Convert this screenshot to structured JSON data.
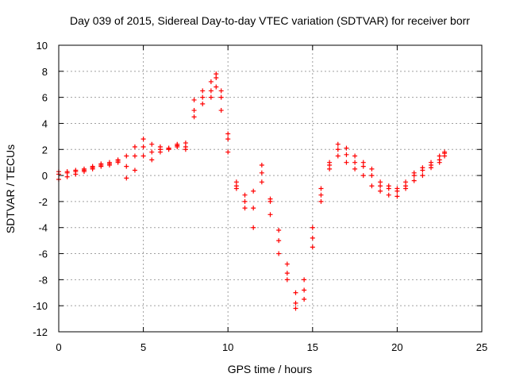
{
  "chart_data": {
    "type": "scatter",
    "title": "Day 039 of 2015, Sidereal Day-to-day VTEC variation (SDTVAR) for receiver borr",
    "xlabel": "GPS time / hours",
    "ylabel": "SDTVAR / TECUs",
    "xlim": [
      0,
      25
    ],
    "ylim": [
      -12,
      10
    ],
    "xticks": [
      0,
      5,
      10,
      15,
      20,
      25
    ],
    "yticks": [
      -12,
      -10,
      -8,
      -6,
      -4,
      -2,
      0,
      2,
      4,
      6,
      8,
      10
    ],
    "grid": true,
    "legend": "none",
    "marker": "plus",
    "color": "#ff0000",
    "series": [
      {
        "x": [
          0.0,
          0.5,
          1.0,
          1.5,
          2.0,
          2.5,
          3.0,
          3.5,
          4.0,
          4.5,
          5.0,
          5.5,
          6.0,
          6.5,
          7.0,
          7.5,
          8.0,
          8.5,
          9.0,
          9.3,
          9.6,
          10.0,
          10.5,
          11.0,
          11.5,
          12.0,
          12.5,
          13.0,
          13.5,
          14.0,
          14.5,
          15.0,
          15.5,
          16.0,
          16.5,
          17.0,
          17.5,
          18.0,
          18.5,
          19.0,
          19.5,
          20.0,
          20.5,
          21.0,
          21.5,
          22.0,
          22.5,
          22.8
        ],
        "y": [
          0.3,
          0.3,
          0.4,
          0.5,
          0.7,
          0.9,
          1.0,
          1.2,
          1.5,
          2.2,
          2.8,
          2.4,
          2.2,
          2.1,
          2.4,
          2.5,
          5.8,
          6.5,
          7.2,
          7.8,
          6.5,
          2.8,
          -0.5,
          -1.5,
          -1.2,
          0.8,
          -2.0,
          -5.0,
          -7.5,
          -9.8,
          -9.5,
          -5.5,
          -2.0,
          1.0,
          2.4,
          1.6,
          1.0,
          1.0,
          0.5,
          -0.8,
          -1.0,
          -1.2,
          -0.8,
          0.0,
          0.6,
          1.0,
          1.5,
          1.8
        ]
      },
      {
        "x": [
          0.0,
          0.5,
          1.0,
          1.5,
          2.0,
          2.5,
          3.0,
          3.5,
          4.0,
          4.5,
          5.0,
          5.5,
          6.0,
          6.5,
          7.0,
          7.5,
          8.0,
          8.5,
          9.0,
          9.3,
          9.6,
          10.0,
          10.5,
          11.0,
          11.5,
          12.0,
          12.5,
          13.0,
          13.5,
          14.0,
          14.5,
          15.0,
          15.5,
          16.0,
          16.5,
          17.0,
          17.5,
          18.0,
          18.5,
          19.0,
          19.5,
          20.0,
          20.5,
          21.0,
          21.5,
          22.0,
          22.5,
          22.8
        ],
        "y": [
          -0.3,
          -0.1,
          0.1,
          0.3,
          0.5,
          0.7,
          0.8,
          1.0,
          -0.2,
          0.4,
          1.5,
          1.2,
          1.8,
          2.0,
          2.2,
          2.0,
          4.5,
          5.5,
          6.0,
          6.8,
          5.0,
          1.8,
          -1.0,
          -2.5,
          -4.0,
          -0.5,
          -3.0,
          -6.0,
          -8.0,
          -10.2,
          -8.0,
          -4.0,
          -1.0,
          0.5,
          1.5,
          1.0,
          0.5,
          0.0,
          -0.8,
          -1.2,
          -1.5,
          -1.6,
          -1.0,
          -0.4,
          0.0,
          0.6,
          1.0,
          1.5
        ]
      },
      {
        "x": [
          0.0,
          0.5,
          1.0,
          1.5,
          2.0,
          2.5,
          3.0,
          3.5,
          4.0,
          4.5,
          5.0,
          5.5,
          6.0,
          6.5,
          7.0,
          7.5,
          8.0,
          8.5,
          9.0,
          9.3,
          9.6,
          10.0,
          10.5,
          11.0,
          11.5,
          12.0,
          12.5,
          13.0,
          13.5,
          14.0,
          14.5,
          15.0,
          15.5,
          16.0,
          16.5,
          17.0,
          17.5,
          18.0,
          18.5,
          19.0,
          19.5,
          20.0,
          20.5,
          21.0,
          21.5,
          22.0,
          22.5,
          22.8
        ],
        "y": [
          0.1,
          0.2,
          0.3,
          0.4,
          0.6,
          0.8,
          0.9,
          1.1,
          0.7,
          1.5,
          2.2,
          1.8,
          2.0,
          2.1,
          2.3,
          2.2,
          5.0,
          6.0,
          6.5,
          7.5,
          6.0,
          3.2,
          -0.8,
          -2.0,
          -2.5,
          0.2,
          -1.8,
          -4.2,
          -6.8,
          -9.0,
          -8.8,
          -4.8,
          -1.5,
          0.8,
          2.0,
          2.1,
          1.5,
          0.7,
          0.0,
          -0.5,
          -0.8,
          -1.0,
          -0.5,
          0.2,
          0.4,
          0.8,
          1.2,
          1.7
        ]
      }
    ]
  }
}
